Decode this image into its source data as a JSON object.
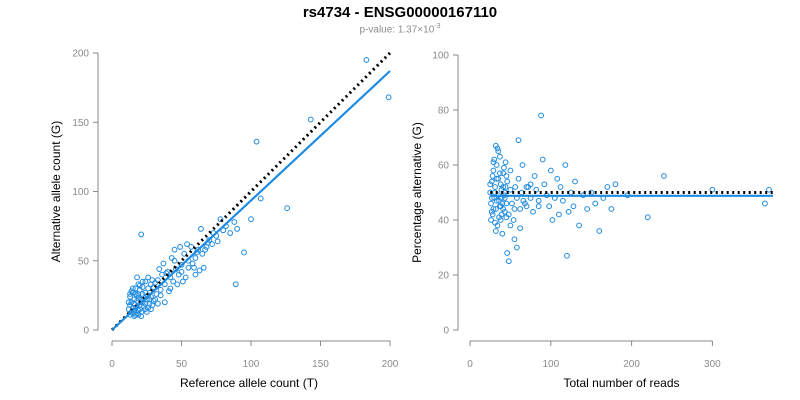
{
  "header": {
    "title": "rs4734 - ENSG00000167110",
    "pvalue_prefix": "p-value: 1.37×10",
    "pvalue_exponent": "-3"
  },
  "colors": {
    "points": "#1f8be0",
    "fit_line": "#1f8be0",
    "reference_line": "#000000",
    "axis": "#8a8a8a"
  },
  "chart_data": [
    {
      "type": "scatter",
      "xlabel": "Reference allele count (T)",
      "ylabel": "Alternative allele count (G)",
      "xlim": [
        0,
        200
      ],
      "ylim": [
        0,
        200
      ],
      "xticks": [
        0,
        50,
        100,
        150,
        200
      ],
      "yticks": [
        0,
        50,
        100,
        150,
        200
      ],
      "grid": false,
      "fit_line": {
        "style": "solid",
        "points": [
          [
            0,
            0
          ],
          [
            200,
            187
          ]
        ]
      },
      "reference_line": {
        "style": "dotted",
        "points": [
          [
            0,
            0
          ],
          [
            200,
            200
          ]
        ]
      },
      "points": [
        [
          12,
          15
        ],
        [
          13,
          18
        ],
        [
          14,
          20
        ],
        [
          15,
          12
        ],
        [
          16,
          22
        ],
        [
          17,
          16
        ],
        [
          18,
          25
        ],
        [
          19,
          14
        ],
        [
          20,
          18
        ],
        [
          21,
          22
        ],
        [
          13,
          24
        ],
        [
          14,
          13
        ],
        [
          15,
          27
        ],
        [
          16,
          19
        ],
        [
          17,
          11
        ],
        [
          18,
          21
        ],
        [
          19,
          26
        ],
        [
          20,
          15
        ],
        [
          22,
          20
        ],
        [
          23,
          17
        ],
        [
          12,
          20
        ],
        [
          15,
          16
        ],
        [
          16,
          14
        ],
        [
          18,
          12
        ],
        [
          19,
          23
        ],
        [
          21,
          13
        ],
        [
          22,
          26
        ],
        [
          24,
          19
        ],
        [
          25,
          22
        ],
        [
          26,
          16
        ],
        [
          14,
          28
        ],
        [
          17,
          30
        ],
        [
          20,
          29
        ],
        [
          22,
          31
        ],
        [
          24,
          27
        ],
        [
          26,
          25
        ],
        [
          28,
          24
        ],
        [
          30,
          21
        ],
        [
          27,
          19
        ],
        [
          23,
          23
        ],
        [
          13,
          11
        ],
        [
          16,
          10
        ],
        [
          19,
          11
        ],
        [
          21,
          10
        ],
        [
          25,
          13
        ],
        [
          28,
          15
        ],
        [
          29,
          18
        ],
        [
          31,
          22
        ],
        [
          32,
          26
        ],
        [
          33,
          19
        ],
        [
          18,
          38
        ],
        [
          21,
          69
        ],
        [
          24,
          35
        ],
        [
          26,
          30
        ],
        [
          28,
          33
        ],
        [
          30,
          31
        ],
        [
          33,
          36
        ],
        [
          35,
          29
        ],
        [
          36,
          40
        ],
        [
          38,
          33
        ],
        [
          40,
          42
        ],
        [
          42,
          38
        ],
        [
          41,
          28
        ],
        [
          44,
          35
        ],
        [
          46,
          44
        ],
        [
          48,
          40
        ],
        [
          45,
          50
        ],
        [
          50,
          47
        ],
        [
          52,
          55
        ],
        [
          55,
          45
        ],
        [
          53,
          38
        ],
        [
          58,
          48
        ],
        [
          60,
          52
        ],
        [
          62,
          58
        ],
        [
          65,
          55
        ],
        [
          63,
          43
        ],
        [
          68,
          60
        ],
        [
          70,
          65
        ],
        [
          72,
          62
        ],
        [
          75,
          68
        ],
        [
          57,
          60
        ],
        [
          64,
          73
        ],
        [
          66,
          45
        ],
        [
          60,
          40
        ],
        [
          78,
          80
        ],
        [
          80,
          72
        ],
        [
          82,
          75
        ],
        [
          85,
          70
        ],
        [
          88,
          78
        ],
        [
          90,
          73
        ],
        [
          89,
          33
        ],
        [
          95,
          56
        ],
        [
          100,
          80
        ],
        [
          104,
          136
        ],
        [
          107,
          95
        ],
        [
          126,
          88
        ],
        [
          143,
          152
        ],
        [
          183,
          195
        ],
        [
          199,
          168
        ],
        [
          45,
          58
        ],
        [
          35,
          25
        ],
        [
          38,
          20
        ],
        [
          42,
          30
        ],
        [
          47,
          33
        ],
        [
          50,
          42
        ],
        [
          31,
          34
        ],
        [
          27,
          22
        ],
        [
          24,
          15
        ],
        [
          20,
          32
        ],
        [
          17,
          26
        ],
        [
          15,
          30
        ],
        [
          13,
          26
        ],
        [
          19,
          33
        ],
        [
          22,
          35
        ],
        [
          26,
          38
        ],
        [
          29,
          36
        ],
        [
          34,
          44
        ],
        [
          37,
          48
        ],
        [
          39,
          41
        ],
        [
          43,
          52
        ],
        [
          55,
          50
        ],
        [
          49,
          60
        ],
        [
          51,
          35
        ],
        [
          54,
          62
        ],
        [
          59,
          45
        ],
        [
          61,
          56
        ],
        [
          67,
          58
        ],
        [
          69,
          63
        ],
        [
          73,
          70
        ],
        [
          76,
          64
        ]
      ]
    },
    {
      "type": "scatter",
      "xlabel": "Total number of reads",
      "ylabel": "Percentage alternative (G)",
      "xlim": [
        0,
        375
      ],
      "ylim": [
        0,
        100
      ],
      "xticks": [
        0,
        100,
        200,
        300
      ],
      "yticks": [
        0,
        20,
        40,
        60,
        80,
        100
      ],
      "grid": false,
      "fit_line": {
        "style": "solid",
        "y": 48.8
      },
      "reference_line": {
        "style": "dotted",
        "y": 50
      },
      "points": [
        [
          25,
          50
        ],
        [
          26,
          46
        ],
        [
          27,
          54
        ],
        [
          28,
          42
        ],
        [
          29,
          58
        ],
        [
          30,
          48
        ],
        [
          31,
          52
        ],
        [
          32,
          44
        ],
        [
          33,
          60
        ],
        [
          34,
          38
        ],
        [
          35,
          55
        ],
        [
          36,
          47
        ],
        [
          37,
          63
        ],
        [
          38,
          45
        ],
        [
          39,
          51
        ],
        [
          40,
          35
        ],
        [
          41,
          57
        ],
        [
          42,
          49
        ],
        [
          43,
          43
        ],
        [
          44,
          61
        ],
        [
          26,
          40
        ],
        [
          28,
          56
        ],
        [
          30,
          62
        ],
        [
          32,
          36
        ],
        [
          34,
          66
        ],
        [
          36,
          41
        ],
        [
          38,
          53
        ],
        [
          40,
          46
        ],
        [
          42,
          59
        ],
        [
          44,
          52
        ],
        [
          27,
          48
        ],
        [
          29,
          44
        ],
        [
          31,
          50
        ],
        [
          33,
          47
        ],
        [
          35,
          49
        ],
        [
          37,
          45
        ],
        [
          39,
          48
        ],
        [
          41,
          44
        ],
        [
          43,
          50
        ],
        [
          45,
          46
        ],
        [
          46,
          54
        ],
        [
          48,
          42
        ],
        [
          50,
          58
        ],
        [
          52,
          46
        ],
        [
          54,
          40
        ],
        [
          56,
          52
        ],
        [
          58,
          48
        ],
        [
          60,
          55
        ],
        [
          62,
          44
        ],
        [
          64,
          50
        ],
        [
          46,
          28
        ],
        [
          48,
          25
        ],
        [
          50,
          38
        ],
        [
          55,
          33
        ],
        [
          58,
          30
        ],
        [
          62,
          37
        ],
        [
          66,
          47
        ],
        [
          70,
          45
        ],
        [
          72,
          52
        ],
        [
          75,
          48
        ],
        [
          78,
          43
        ],
        [
          80,
          56
        ],
        [
          82,
          51
        ],
        [
          85,
          47
        ],
        [
          88,
          78
        ],
        [
          90,
          62
        ],
        [
          92,
          53
        ],
        [
          95,
          49
        ],
        [
          98,
          45
        ],
        [
          100,
          58
        ],
        [
          102,
          40
        ],
        [
          105,
          48
        ],
        [
          108,
          55
        ],
        [
          110,
          42
        ],
        [
          112,
          52
        ],
        [
          115,
          47
        ],
        [
          118,
          60
        ],
        [
          120,
          27
        ],
        [
          122,
          43
        ],
        [
          125,
          50
        ],
        [
          128,
          45
        ],
        [
          130,
          54
        ],
        [
          135,
          38
        ],
        [
          140,
          49
        ],
        [
          145,
          44
        ],
        [
          150,
          50
        ],
        [
          155,
          46
        ],
        [
          160,
          36
        ],
        [
          165,
          48
        ],
        [
          170,
          52
        ],
        [
          175,
          44
        ],
        [
          180,
          53
        ],
        [
          195,
          49
        ],
        [
          220,
          41
        ],
        [
          240,
          56
        ],
        [
          300,
          51
        ],
        [
          365,
          46
        ],
        [
          370,
          51
        ],
        [
          60,
          69
        ],
        [
          70,
          52
        ],
        [
          32,
          67
        ],
        [
          35,
          65
        ],
        [
          38,
          40
        ],
        [
          45,
          56
        ],
        [
          50,
          51
        ],
        [
          55,
          44
        ],
        [
          65,
          60
        ],
        [
          68,
          46
        ],
        [
          75,
          53
        ],
        [
          85,
          45
        ],
        [
          25,
          53
        ],
        [
          27,
          43
        ],
        [
          29,
          61
        ],
        [
          31,
          39
        ],
        [
          33,
          55
        ],
        [
          37,
          57
        ],
        [
          39,
          42
        ],
        [
          41,
          52
        ],
        [
          43,
          48
        ],
        [
          45,
          41
        ]
      ]
    }
  ]
}
